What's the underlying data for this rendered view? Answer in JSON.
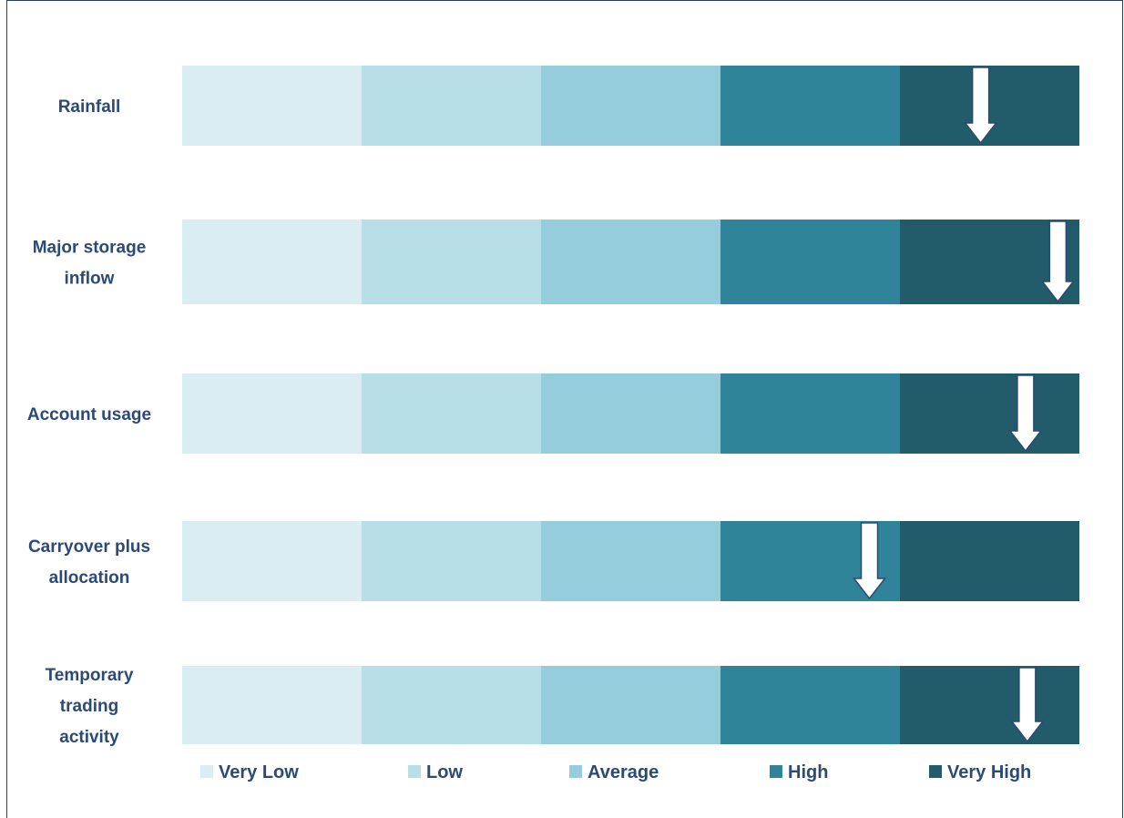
{
  "chart_data": {
    "type": "rating-scale",
    "categories": [
      "Very Low",
      "Low",
      "Average",
      "High",
      "Very High"
    ],
    "colors": [
      "#daedf2",
      "#b8dfe8",
      "#95cddc",
      "#2f8499",
      "#225b69"
    ],
    "rows": [
      {
        "label": [
          "Rainfall"
        ],
        "indicator": "Very High",
        "position": 0.45
      },
      {
        "label": [
          "Major storage",
          "inflow"
        ],
        "indicator": "Very High",
        "position": 0.88
      },
      {
        "label": [
          "Account usage"
        ],
        "indicator": "Very High",
        "position": 0.7
      },
      {
        "label": [
          "Carryover plus",
          "allocation"
        ],
        "indicator": "High",
        "position": 0.83
      },
      {
        "label": [
          "Temporary",
          "trading",
          "activity"
        ],
        "indicator": "Very High",
        "position": 0.71
      }
    ],
    "legend": {
      "placement": "bottom",
      "items": [
        "Very Low",
        "Low",
        "Average",
        "High",
        "Very High"
      ]
    },
    "arrow_style": {
      "fill": "#ffffff",
      "stroke": "#2b4a75"
    }
  }
}
